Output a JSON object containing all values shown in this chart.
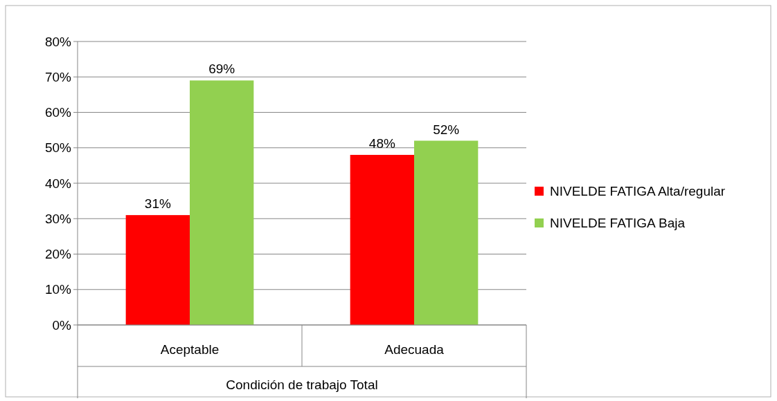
{
  "chart_data": {
    "type": "bar",
    "xlabel": "Condición de trabajo Total",
    "categories": [
      "Aceptable",
      "Adecuada"
    ],
    "series": [
      {
        "name": "NIVELDE FATIGA Alta/regular",
        "color": "#ff0000",
        "values": [
          31,
          48
        ],
        "value_labels": [
          "31%",
          "48%"
        ]
      },
      {
        "name": "NIVELDE FATIGA Baja",
        "color": "#92d050",
        "values": [
          69,
          52
        ],
        "value_labels": [
          "69%",
          "52%"
        ]
      }
    ],
    "ylim": [
      0,
      80
    ],
    "yticks": [
      {
        "value": 0,
        "label": "0%"
      },
      {
        "value": 10,
        "label": "10%"
      },
      {
        "value": 20,
        "label": "20%"
      },
      {
        "value": 30,
        "label": "30%"
      },
      {
        "value": 40,
        "label": "40%"
      },
      {
        "value": 50,
        "label": "50%"
      },
      {
        "value": 60,
        "label": "60%"
      },
      {
        "value": 70,
        "label": "70%"
      },
      {
        "value": 80,
        "label": "80%"
      }
    ],
    "grid": "y",
    "legend": "right"
  }
}
